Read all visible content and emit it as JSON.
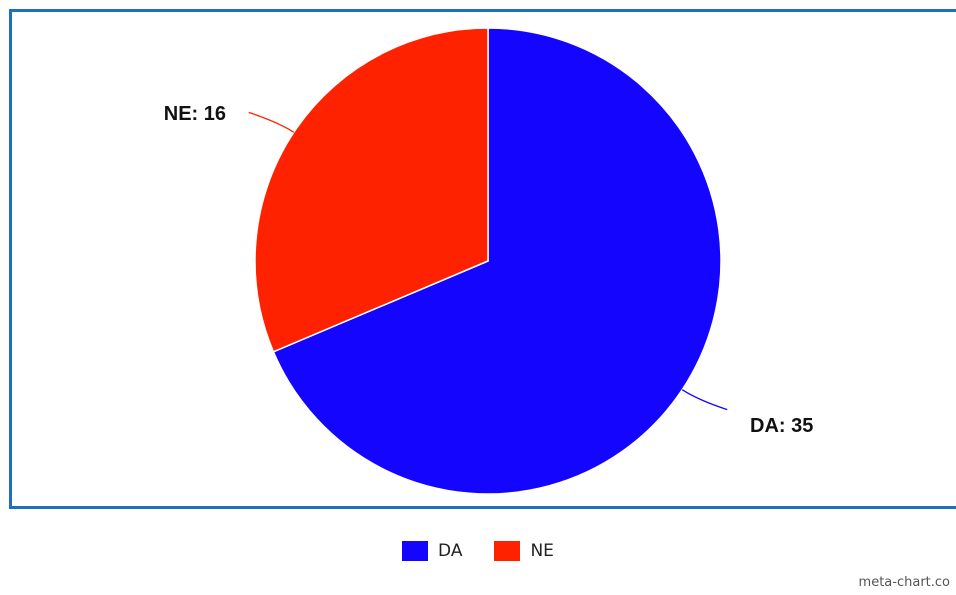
{
  "chart_data": {
    "type": "pie",
    "title": "",
    "categories": [
      "DA",
      "NE"
    ],
    "values": [
      35,
      16
    ],
    "colors": [
      "#1405ff",
      "#ff2200"
    ],
    "labels": [
      "DA: 35",
      "NE: 16"
    ],
    "legend": {
      "placement": "bottom-center",
      "entries": [
        "DA",
        "NE"
      ]
    }
  },
  "frame": {
    "border_color": "#1f6fbf"
  },
  "watermark": "meta-chart.co"
}
